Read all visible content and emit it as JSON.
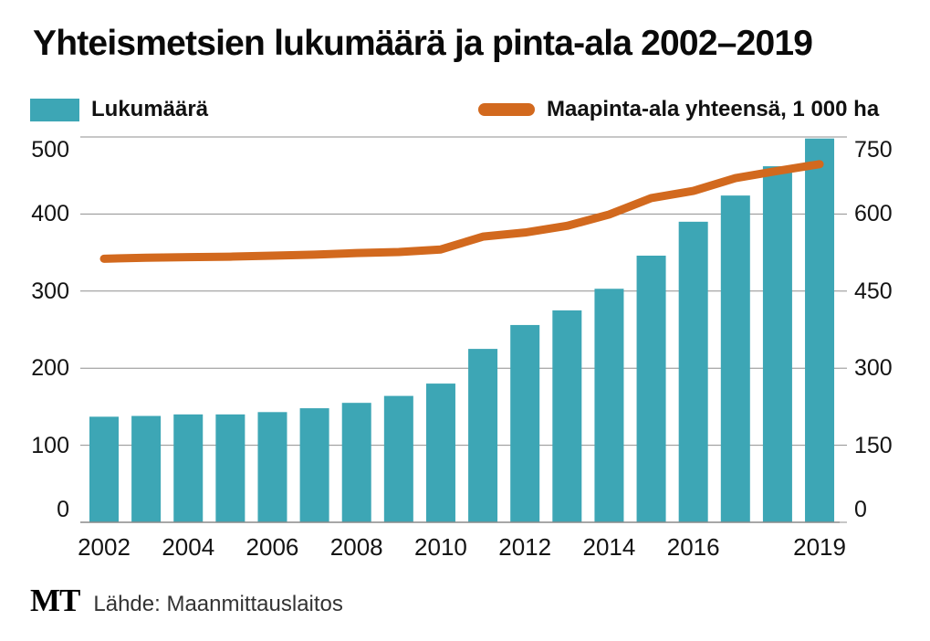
{
  "title": "Yhteismetsien lukumäärä ja pinta-ala 2002–2019",
  "legend": [
    {
      "label": "Lukumäärä",
      "type": "bar",
      "color": "#3da6b5"
    },
    {
      "label": "Maapinta-ala yhteensä, 1 000 ha",
      "type": "line",
      "color": "#d2691e"
    }
  ],
  "footer": {
    "logo_text": "MT",
    "source_text": "Lähde: Maanmittauslaitos"
  },
  "colors": {
    "bar": "#3da6b5",
    "line": "#d2691e",
    "gridline": "#8f8f8f",
    "baseline": "#8a8a8a",
    "text": "#141414"
  },
  "chart_data": {
    "type": "bar",
    "subtype": "bar+line combo, dual axis",
    "title": "Yhteismetsien lukumäärä ja pinta-ala 2002–2019",
    "x": [
      2002,
      2003,
      2004,
      2005,
      2006,
      2007,
      2008,
      2009,
      2010,
      2011,
      2012,
      2013,
      2014,
      2015,
      2016,
      2017,
      2018,
      2019
    ],
    "x_tick_labels": [
      "2002",
      "2004",
      "2006",
      "2008",
      "2010",
      "2012",
      "2014",
      "2016",
      "2019"
    ],
    "series": [
      {
        "name": "Lukumäärä",
        "type": "bar",
        "axis": "left",
        "color": "#3da6b5",
        "values": [
          137,
          138,
          140,
          140,
          143,
          148,
          155,
          164,
          180,
          225,
          256,
          275,
          303,
          346,
          390,
          424,
          462,
          498
        ]
      },
      {
        "name": "Maapinta-ala yhteensä, 1 000 ha",
        "type": "line",
        "axis": "right",
        "color": "#d2691e",
        "values": [
          513,
          515,
          516,
          517,
          519,
          521,
          524,
          526,
          531,
          556,
          564,
          577,
          599,
          631,
          645,
          670,
          684,
          697
        ]
      }
    ],
    "left_axis": {
      "ticks": [
        0,
        100,
        200,
        300,
        400,
        500
      ],
      "range": [
        0,
        500
      ]
    },
    "right_axis": {
      "ticks": [
        0,
        150,
        300,
        450,
        600,
        750
      ],
      "range": [
        0,
        750
      ]
    },
    "grid": "horizontal gridlines on",
    "legend_position": "top"
  }
}
